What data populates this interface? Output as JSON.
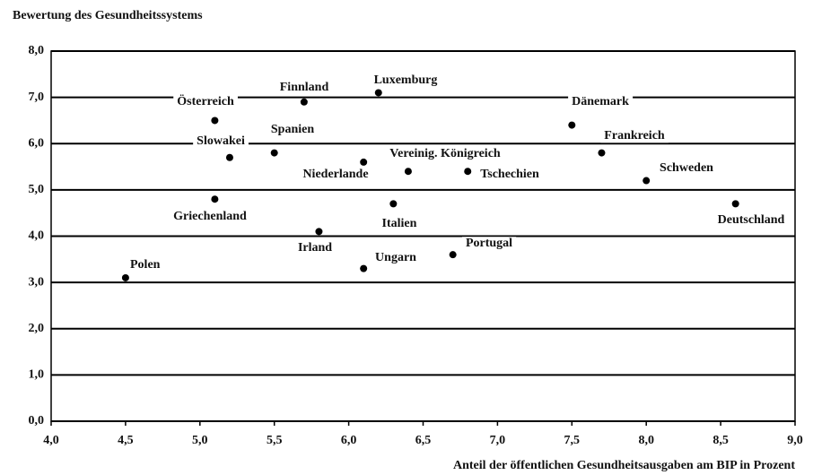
{
  "chart_data": {
    "type": "scatter",
    "title": "Bewertung des Gesundheitssystems",
    "x_label": "Anteil der öffentlichen Gesundheitsausgaben am BIP in Prozent",
    "point_labels": [
      "Polen",
      "Österreich",
      "Slowakei",
      "Griechenland",
      "Finnland",
      "Spanien",
      "Irland",
      "Luxemburg",
      "Niederlande",
      "Ungarn",
      "Vereinig. Königreich",
      "Italien",
      "Tschechien",
      "Portugal",
      "Dänemark",
      "Frankreich",
      "Schweden",
      "Deutschland"
    ],
    "x": [
      4.5,
      5.1,
      5.2,
      5.1,
      5.7,
      5.5,
      5.8,
      6.2,
      6.1,
      6.1,
      6.4,
      6.3,
      6.8,
      6.7,
      7.5,
      7.7,
      8.0,
      8.6
    ],
    "values": [
      3.1,
      6.5,
      5.7,
      4.8,
      6.9,
      5.8,
      4.1,
      7.1,
      5.6,
      3.3,
      5.4,
      4.7,
      5.4,
      3.6,
      6.4,
      5.8,
      5.2,
      4.7
    ],
    "color": "#000000",
    "xlim": [
      4,
      9
    ],
    "ylim": [
      0,
      8
    ],
    "xticks": [
      {
        "value": 4,
        "label": "4,0"
      },
      {
        "value": 4.5,
        "label": "4,5"
      },
      {
        "value": 5,
        "label": "5,0"
      },
      {
        "value": 5.5,
        "label": "5,5"
      },
      {
        "value": 6,
        "label": "6,0"
      },
      {
        "value": 6.5,
        "label": "6,5"
      },
      {
        "value": 7,
        "label": "7,0"
      },
      {
        "value": 7.5,
        "label": "7,5"
      },
      {
        "value": 8,
        "label": "8,0"
      },
      {
        "value": 8.5,
        "label": "8,5"
      },
      {
        "value": 9,
        "label": "9,0"
      }
    ],
    "yticks": [
      {
        "value": 0,
        "label": "0,0"
      },
      {
        "value": 1,
        "label": "1,0"
      },
      {
        "value": 2,
        "label": "2,0"
      },
      {
        "value": 3,
        "label": "3,0"
      },
      {
        "value": 4,
        "label": "4,0"
      },
      {
        "value": 5,
        "label": "5,0"
      },
      {
        "value": 6,
        "label": "6,0"
      },
      {
        "value": 7,
        "label": "7,0"
      },
      {
        "value": 8,
        "label": "8,0"
      }
    ],
    "grid": true
  }
}
